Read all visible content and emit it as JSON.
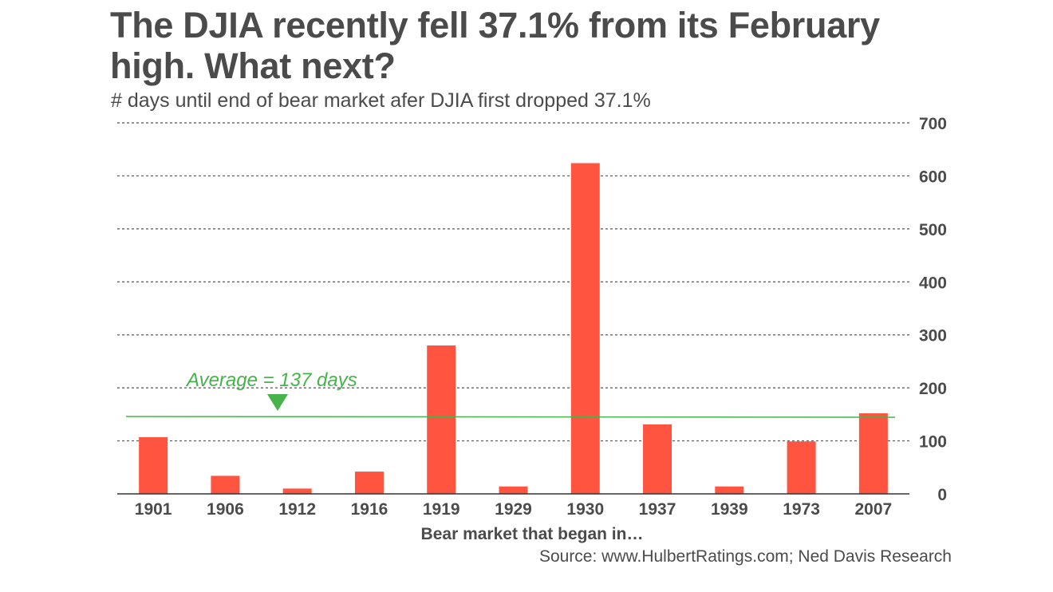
{
  "header": {
    "title": "The DJIA recently fell 37.1% from its February high. What next?",
    "subtitle": "# days until end of bear market afer DJIA first dropped 37.1%"
  },
  "footer": {
    "source": "Source: www.HulbertRatings.com; Ned Davis Research"
  },
  "colors": {
    "bar": "#ff5440",
    "average": "#46b34b",
    "grid": "#555555",
    "text": "#4b4b4b"
  },
  "chart_data": {
    "type": "bar",
    "title": "The DJIA recently fell 37.1% from its February high. What next?",
    "subtitle": "# days until end of bear market afer DJIA first dropped 37.1%",
    "xlabel": "Bear market that began in…",
    "ylabel": "",
    "categories": [
      "1901",
      "1906",
      "1912",
      "1916",
      "1919",
      "1929",
      "1930",
      "1937",
      "1939",
      "1973",
      "2007"
    ],
    "values": [
      107,
      34,
      10,
      42,
      280,
      14,
      624,
      131,
      14,
      99,
      152
    ],
    "ylim": [
      0,
      700
    ],
    "yticks": [
      0,
      100,
      200,
      300,
      400,
      500,
      600,
      700
    ],
    "grid": true,
    "y_axis_side": "right",
    "average": {
      "value": 137,
      "label": "Average = 137 days"
    }
  }
}
